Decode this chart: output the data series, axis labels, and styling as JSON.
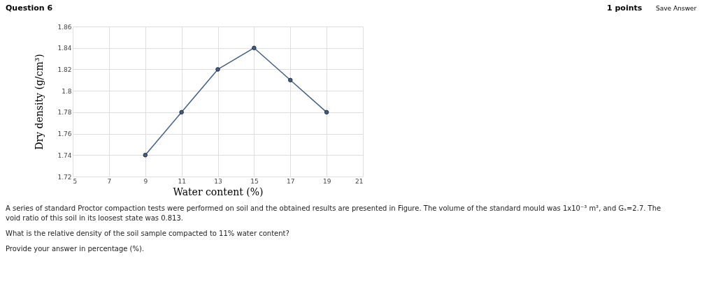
{
  "chart_data": {
    "type": "line",
    "xlabel": "Water content (%)",
    "ylabel": "Dry density (g/cm³)",
    "x": [
      9,
      11,
      13,
      15,
      17,
      19
    ],
    "series": [
      {
        "color": "#3f5f86",
        "values": [
          1.74,
          1.78,
          1.82,
          1.84,
          1.81,
          1.78
        ]
      }
    ],
    "xlim": [
      5,
      21
    ],
    "xticks": [
      5,
      7,
      9,
      11,
      13,
      15,
      17,
      19,
      21
    ],
    "ylim": [
      1.72,
      1.86
    ],
    "yticks": [
      1.72,
      1.74,
      1.76,
      1.78,
      1.8,
      1.82,
      1.84,
      1.86
    ],
    "grid": true,
    "marker": "circle",
    "line_style": "solid",
    "annotations": [
      "Question 6",
      "1 points",
      "Save Answer",
      "A series of standard Proctor compaction tests were performed on soil and the obtained results are presented in Figure. The volume of the standard mould was 1x10⁻³ m³, and Gₛ=2.7. The",
      "void ratio of this soil in its loosest state was 0.813.",
      "What is the relative density of the soil sample compacted to 11% water content?",
      "Provide your answer in percentage (%)."
    ]
  }
}
